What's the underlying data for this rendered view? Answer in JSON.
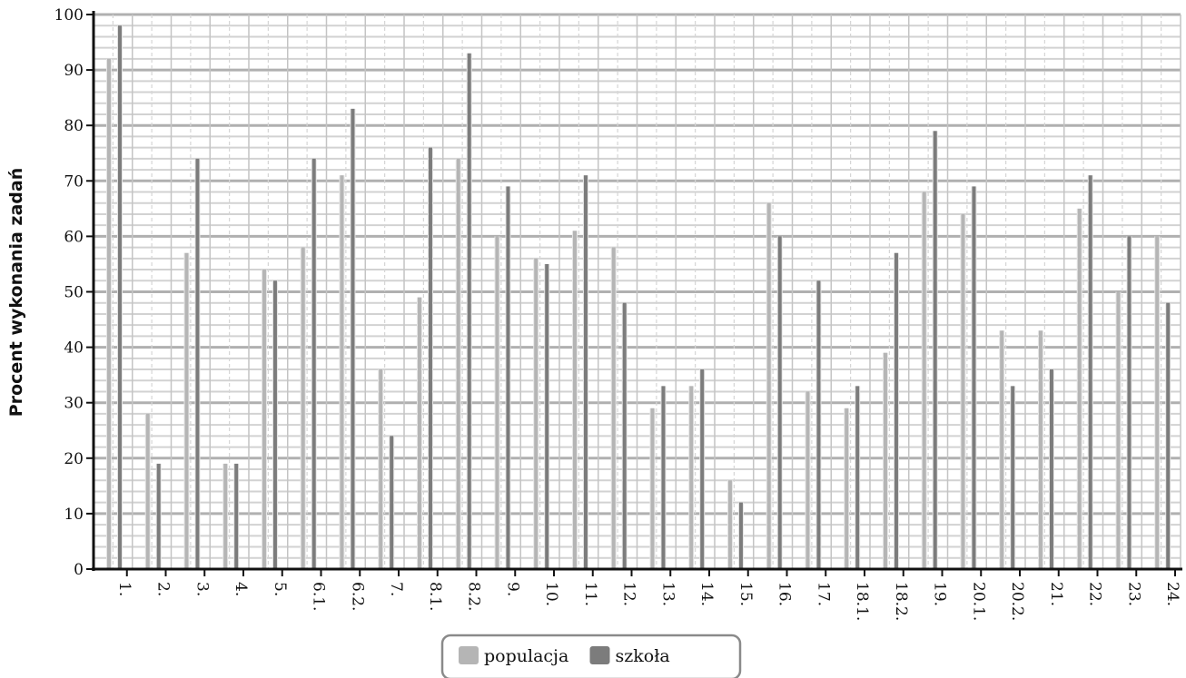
{
  "chart_data": {
    "type": "bar",
    "ylabel": "Procent wykonania zadań",
    "xlabel": "",
    "title": "",
    "ylim": [
      0,
      100
    ],
    "yticks": [
      "0",
      "10",
      "20",
      "30",
      "40",
      "50",
      "60",
      "70",
      "80",
      "90",
      "100"
    ],
    "grid": true,
    "legend_position": "bottom-center",
    "categories": [
      "1.",
      "2.",
      "3.",
      "4.",
      "5.",
      "6.1.",
      "6.2.",
      "7.",
      "8.1.",
      "8.2.",
      "9.",
      "10.",
      "11.",
      "12.",
      "13.",
      "14.",
      "15.",
      "16.",
      "17.",
      "18.1.",
      "18.2.",
      "19.",
      "20.1.",
      "20.2.",
      "21.",
      "22.",
      "23.",
      "24."
    ],
    "series": [
      {
        "name": "populacja",
        "color": "#b5b5b5",
        "values": [
          92,
          28,
          57,
          19,
          54,
          58,
          71,
          36,
          49,
          74,
          60,
          56,
          61,
          58,
          29,
          33,
          16,
          66,
          32,
          29,
          39,
          68,
          64,
          43,
          43,
          65,
          50,
          60
        ]
      },
      {
        "name": "szkoła",
        "color": "#7c7c7c",
        "values": [
          98,
          19,
          74,
          19,
          52,
          74,
          83,
          24,
          76,
          93,
          69,
          55,
          71,
          48,
          33,
          36,
          12,
          60,
          52,
          33,
          57,
          79,
          69,
          33,
          36,
          71,
          60,
          48
        ]
      }
    ]
  }
}
